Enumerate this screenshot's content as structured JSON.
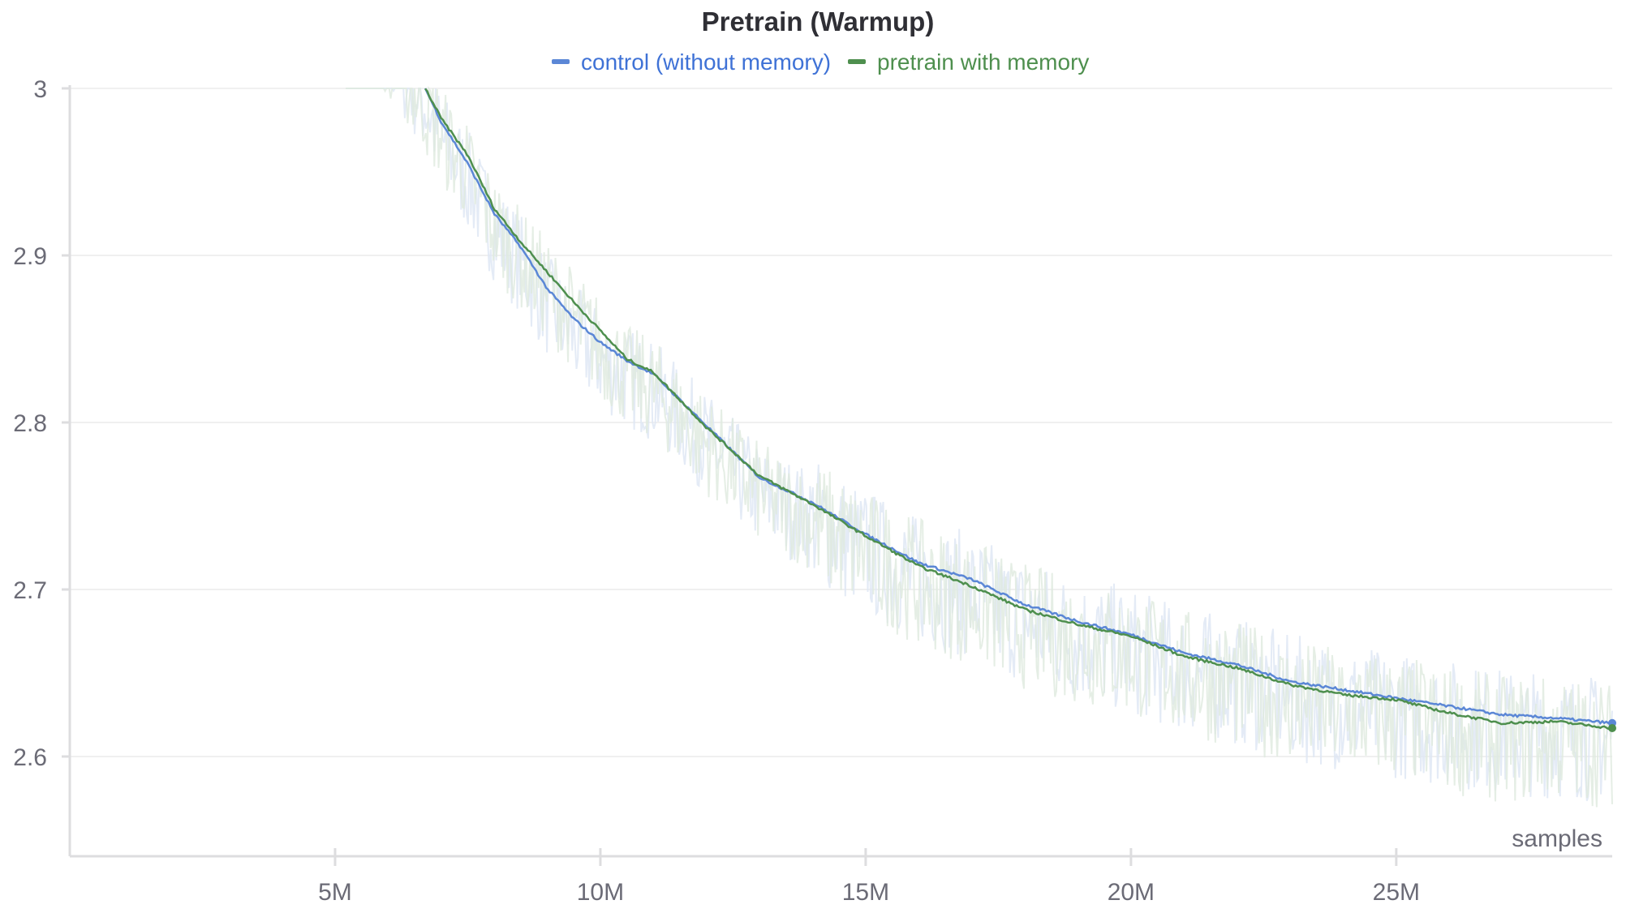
{
  "chart_data": {
    "type": "line",
    "title": "Pretrain (Warmup)",
    "xlabel": "samples",
    "ylabel": "",
    "xlim": [
      0,
      29.07
    ],
    "ylim": [
      2.54,
      3.0
    ],
    "x_ticks": [
      {
        "v": 5,
        "label": "5M"
      },
      {
        "v": 10,
        "label": "10M"
      },
      {
        "v": 15,
        "label": "15M"
      },
      {
        "v": 20,
        "label": "20M"
      },
      {
        "v": 25,
        "label": "25M"
      }
    ],
    "y_ticks": [
      {
        "v": 3.0,
        "label": "3"
      },
      {
        "v": 2.9,
        "label": "2.9"
      },
      {
        "v": 2.8,
        "label": "2.8"
      },
      {
        "v": 2.7,
        "label": "2.7"
      },
      {
        "v": 2.6,
        "label": "2.6"
      }
    ],
    "grid": true,
    "legend_position": "top-center",
    "series": [
      {
        "name": "control (without memory)",
        "color": "#5b87d6",
        "x": [
          6.7,
          7,
          7.5,
          8,
          8.5,
          9,
          9.5,
          10,
          10.5,
          11,
          12,
          13,
          14,
          15,
          16,
          17,
          18,
          19,
          20,
          21,
          22,
          23,
          24,
          25,
          26,
          27,
          28,
          29.07
        ],
        "y": [
          3.0,
          2.98,
          2.955,
          2.925,
          2.905,
          2.88,
          2.862,
          2.848,
          2.837,
          2.829,
          2.798,
          2.767,
          2.752,
          2.733,
          2.716,
          2.706,
          2.691,
          2.681,
          2.673,
          2.662,
          2.655,
          2.645,
          2.64,
          2.635,
          2.63,
          2.625,
          2.623,
          2.62
        ]
      },
      {
        "name": "pretrain with memory",
        "color": "#4e8f4e",
        "x": [
          6.7,
          7,
          7.5,
          8,
          8.5,
          9,
          9.5,
          10,
          10.5,
          11,
          12,
          13,
          14,
          15,
          16,
          17,
          18,
          19,
          20,
          21,
          22,
          23,
          24,
          25,
          26,
          27,
          28,
          29.07
        ],
        "y": [
          3.0,
          2.982,
          2.96,
          2.928,
          2.908,
          2.89,
          2.872,
          2.855,
          2.838,
          2.83,
          2.797,
          2.768,
          2.751,
          2.732,
          2.714,
          2.702,
          2.688,
          2.679,
          2.672,
          2.66,
          2.653,
          2.643,
          2.637,
          2.634,
          2.626,
          2.62,
          2.621,
          2.617
        ]
      }
    ]
  }
}
